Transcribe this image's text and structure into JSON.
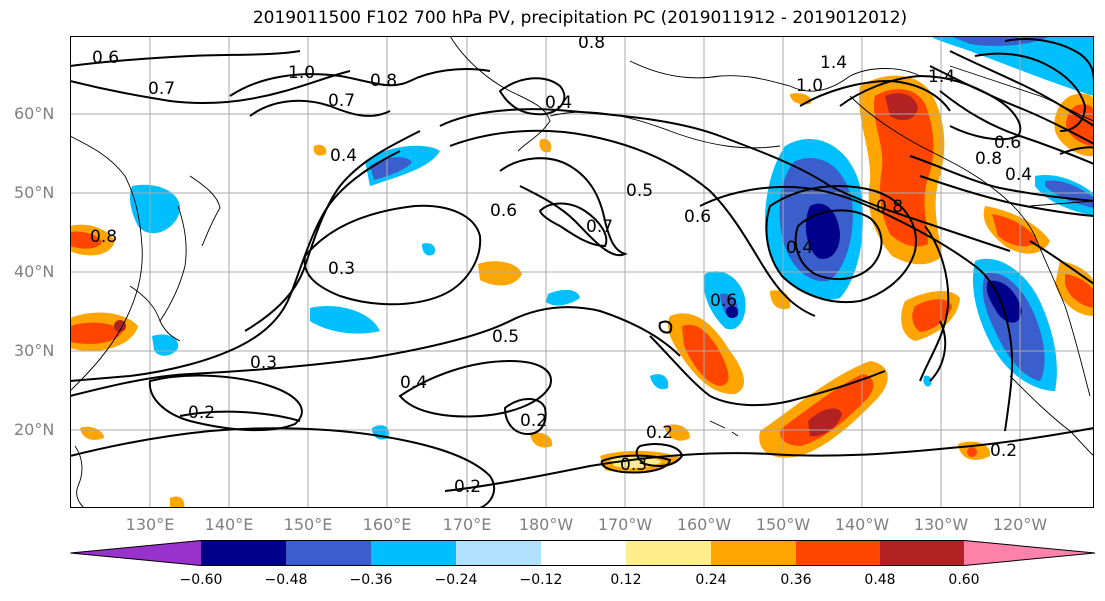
{
  "title": "2019011500 F102 700 hPa PV, precipitation PC (2019011912 - 2019012012)",
  "lat_labels": [
    "60°N",
    "50°N",
    "40°N",
    "30°N",
    "20°N"
  ],
  "lon_labels": [
    "130°E",
    "140°E",
    "150°E",
    "160°E",
    "170°E",
    "180°W",
    "170°W",
    "160°W",
    "150°W",
    "140°W",
    "130°W",
    "120°W"
  ],
  "contour_labels": [
    "0.6",
    "0.7",
    "1.0",
    "0.8",
    "0.7",
    "0.8",
    "0.4",
    "0.4",
    "1.4",
    "1.0",
    "1.4",
    "0.8",
    "0.4",
    "0.6",
    "0.5",
    "0.6",
    "0.7",
    "0.6",
    "0.3",
    "0.8",
    "0.4",
    "0.5",
    "0.3",
    "0.4",
    "0.2",
    "0.2",
    "0.2",
    "0.3",
    "0.2",
    "0.2",
    "0.8",
    "0.6"
  ],
  "colorbar": {
    "ticks": [
      "−0.60",
      "−0.48",
      "−0.36",
      "−0.24",
      "−0.12",
      "0.12",
      "0.24",
      "0.36",
      "0.48",
      "0.60"
    ],
    "colors": [
      "#9932cc",
      "#00008b",
      "#3a5fcd",
      "#00bfff",
      "#b0e2ff",
      "#ffffff",
      "#ffec8b",
      "#ffa500",
      "#ff4500",
      "#b22222",
      "#ff82ab"
    ]
  },
  "fill_colors": {
    "orange": "#ffa500",
    "red": "#ff4500",
    "darkred": "#b22222",
    "yellow": "#ffec8b",
    "lightblue": "#b0e2ff",
    "cyan": "#00bfff",
    "blue": "#3a5fcd",
    "navy": "#00008b"
  }
}
